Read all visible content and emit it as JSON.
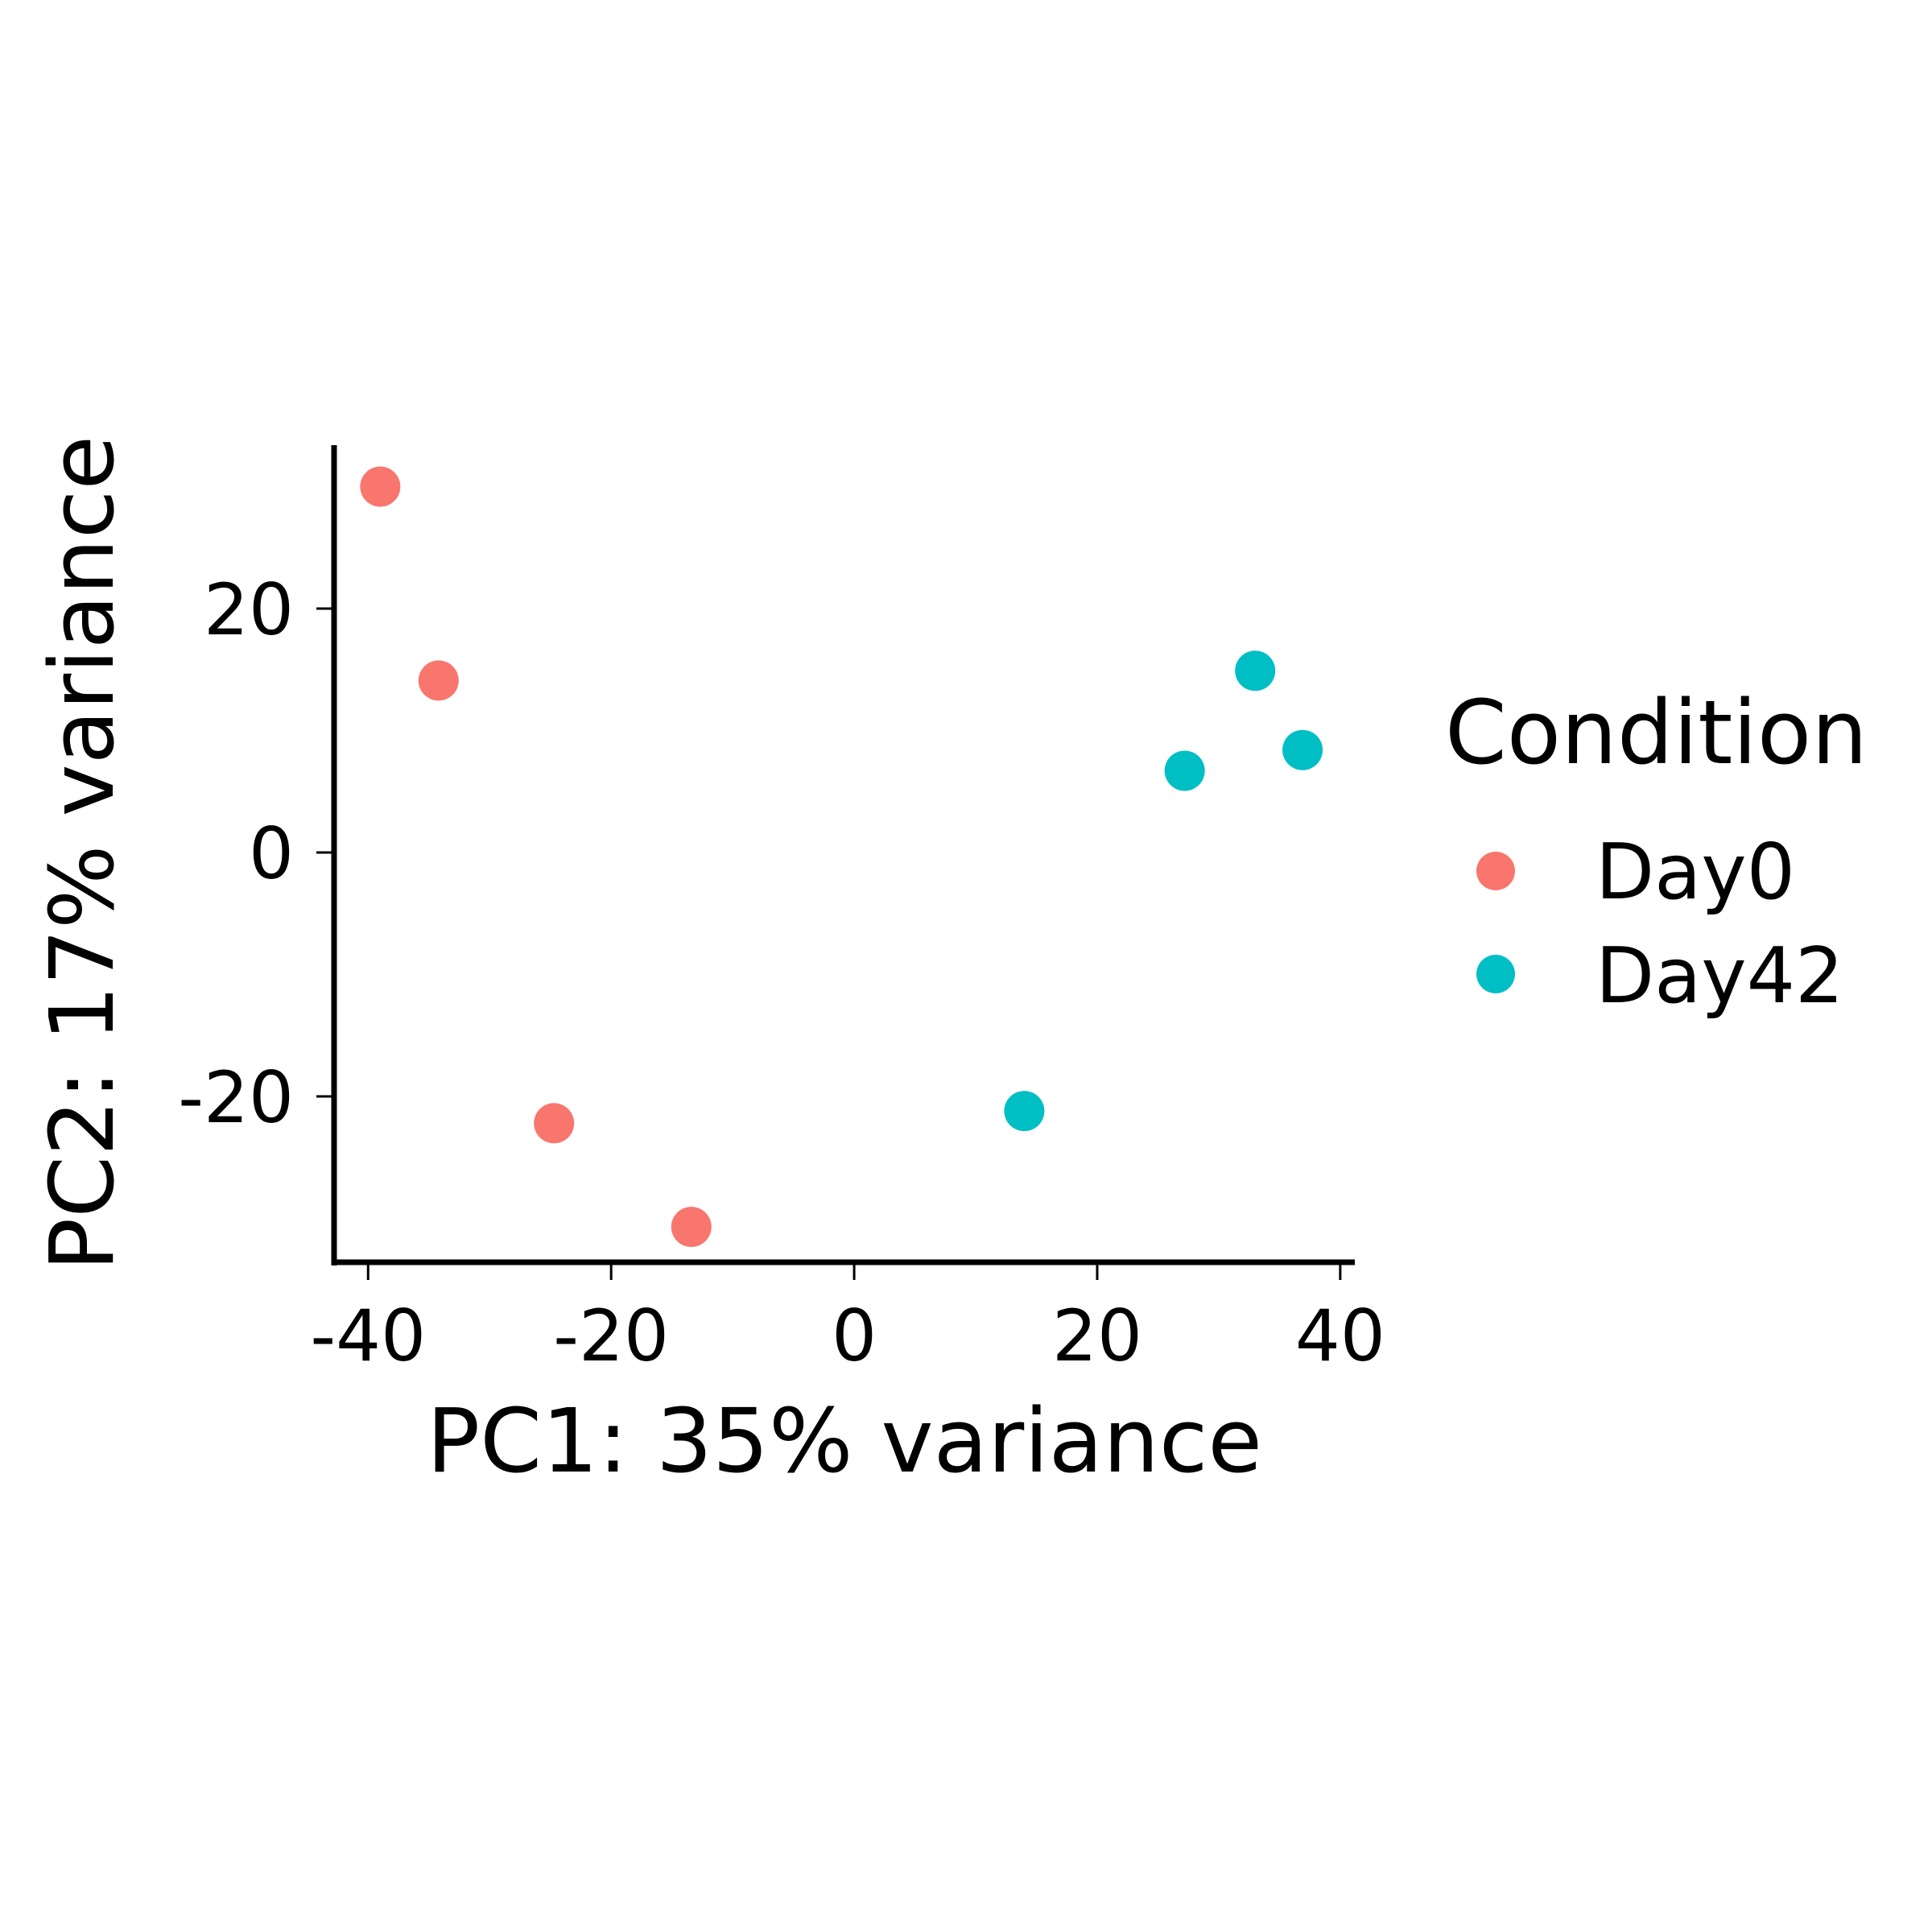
{
  "chart_data": {
    "type": "scatter",
    "title": "",
    "xlabel": "PC1: 35% variance",
    "ylabel": "PC2: 17% variance",
    "xlim": [
      -42.8,
      41.2
    ],
    "ylim": [
      -33.6,
      33.4
    ],
    "xticks": [
      -40,
      -20,
      0,
      20,
      40
    ],
    "xtick_labels": [
      "-40",
      "-20",
      "0",
      "20",
      "40"
    ],
    "yticks": [
      -20,
      0,
      20
    ],
    "ytick_labels": [
      "-20",
      "0",
      "20"
    ],
    "grid": false,
    "legend": {
      "title": "Condition",
      "placement": "right",
      "entries": [
        "Day0",
        "Day42"
      ]
    },
    "series": [
      {
        "name": "Day0",
        "color": "#F8766D",
        "points": [
          {
            "x": -39.0,
            "y": 30.0
          },
          {
            "x": -34.2,
            "y": 14.1
          },
          {
            "x": -24.7,
            "y": -22.2
          },
          {
            "x": -13.4,
            "y": -30.7
          }
        ]
      },
      {
        "name": "Day42",
        "color": "#00BFC4",
        "points": [
          {
            "x": 14.0,
            "y": -21.2
          },
          {
            "x": 27.2,
            "y": 6.7
          },
          {
            "x": 33.0,
            "y": 14.9
          },
          {
            "x": 36.9,
            "y": 8.4
          }
        ]
      }
    ]
  }
}
